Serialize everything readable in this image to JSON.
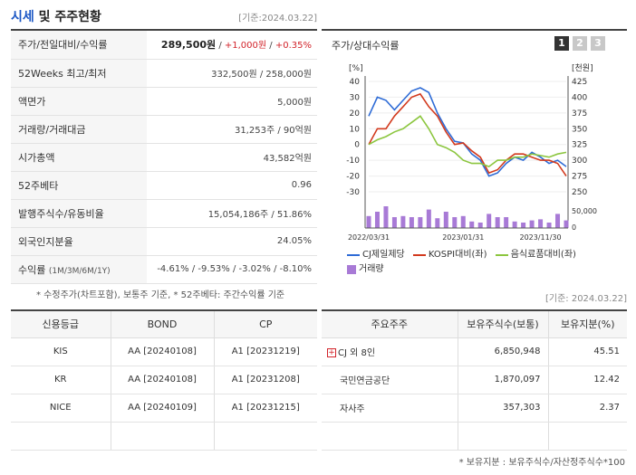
{
  "header": {
    "title_accent": "시세",
    "title_rest": " 및 주주현황",
    "base_date": "[기준:2024.03.22]"
  },
  "info_rows": [
    {
      "label": "주가/전일대비/수익률",
      "price": "289,500원",
      "sep1": " / ",
      "change": "+1,000원",
      "sep2": " / ",
      "rate": "+0.35%"
    },
    {
      "label": "52Weeks 최고/최저",
      "value": "332,500원 / 258,000원"
    },
    {
      "label": "액면가",
      "value": "5,000원"
    },
    {
      "label": "거래량/거래대금",
      "value": "31,253주 / 90억원"
    },
    {
      "label": "시가총액",
      "value": "43,582억원"
    },
    {
      "label": "52주베타",
      "value": "0.96"
    },
    {
      "label": "발행주식수/유동비율",
      "value": "15,054,186주 / 51.86%"
    },
    {
      "label": "외국인지분율",
      "value": "24.05%"
    },
    {
      "label": "수익률",
      "label_small": "(1M/3M/6M/1Y)",
      "value": "-4.61% / -9.53% / -3.02% / -8.10%"
    }
  ],
  "footnote_left": "* 수정주가(차트포함), 보통주 기준, * 52주베타: 주간수익률 기준",
  "base_date2": "[기준: 2024.03.22]",
  "chart_panel": {
    "title": "주가/상대수익률",
    "buttons": [
      "1",
      "2",
      "3"
    ],
    "legend": {
      "cj": "CJ제일제당",
      "kospi": "KOSPI대비(좌)",
      "food": "음식료품대비(좌)",
      "volume": "거래량"
    }
  },
  "chart_data": {
    "type": "line",
    "left_axis_unit": "[%]",
    "right_axis_unit": "[천원]",
    "left_ticks": [
      40,
      30,
      20,
      10,
      0,
      -10,
      -20,
      -30
    ],
    "right_ticks": [
      425,
      400,
      375,
      350,
      325,
      300,
      275,
      250
    ],
    "volume_tick": "50,000",
    "volume_tick_zero": "0",
    "x_labels": [
      "2022/03/31",
      "2023/01/31",
      "2023/11/30"
    ],
    "ylim_left": [
      -30,
      40
    ],
    "ylim_right": [
      250,
      425
    ],
    "series": [
      {
        "name": "CJ제일제당",
        "color": "#2e6bd6",
        "axis": "left",
        "values": [
          18,
          30,
          28,
          22,
          28,
          34,
          36,
          33,
          20,
          10,
          2,
          1,
          -6,
          -10,
          -20,
          -18,
          -12,
          -8,
          -10,
          -5,
          -8,
          -12,
          -10,
          -14
        ]
      },
      {
        "name": "KOSPI대비(좌)",
        "color": "#d23a1e",
        "axis": "left",
        "values": [
          0,
          10,
          10,
          18,
          24,
          30,
          32,
          24,
          18,
          8,
          0,
          1,
          -4,
          -8,
          -18,
          -16,
          -10,
          -6,
          -6,
          -8,
          -10,
          -10,
          -12,
          -20
        ]
      },
      {
        "name": "음식료품대비(좌)",
        "color": "#8cc63f",
        "axis": "left",
        "values": [
          0,
          3,
          5,
          8,
          10,
          14,
          18,
          10,
          0,
          -2,
          -5,
          -10,
          -12,
          -12,
          -14,
          -10,
          -10,
          -8,
          -8,
          -6,
          -7,
          -8,
          -6,
          -5
        ]
      }
    ],
    "volume": [
      22,
      30,
      40,
      20,
      22,
      20,
      20,
      34,
      18,
      30,
      20,
      22,
      12,
      10,
      26,
      20,
      20,
      12,
      10,
      14,
      16,
      10,
      26,
      14
    ],
    "volume_max": 50000,
    "volume_color": "#a87ad6"
  },
  "credit_table": {
    "headers": [
      "신용등급",
      "BOND",
      "CP"
    ],
    "rows": [
      [
        "KIS",
        "AA [20240108]",
        "A1 [20231219]"
      ],
      [
        "KR",
        "AA [20240108]",
        "A1 [20231208]"
      ],
      [
        "NICE",
        "AA [20240109]",
        "A1 [20231215]"
      ],
      [
        "",
        "",
        ""
      ]
    ]
  },
  "holder_table": {
    "headers": [
      "주요주주",
      "보유주식수(보통)",
      "보유지분(%)"
    ],
    "rows": [
      {
        "name": "CJ 외 8인",
        "expand": "+",
        "shares": "6,850,948",
        "pct": "45.51"
      },
      {
        "name": "국민연금공단",
        "expand": "",
        "shares": "1,870,097",
        "pct": "12.42"
      },
      {
        "name": "자사주",
        "expand": "",
        "shares": "357,303",
        "pct": "2.37"
      },
      {
        "name": "",
        "expand": "",
        "shares": "",
        "pct": ""
      }
    ]
  },
  "footnote_right": "* 보유지분 : 보유주식수/자산정주식수*100"
}
